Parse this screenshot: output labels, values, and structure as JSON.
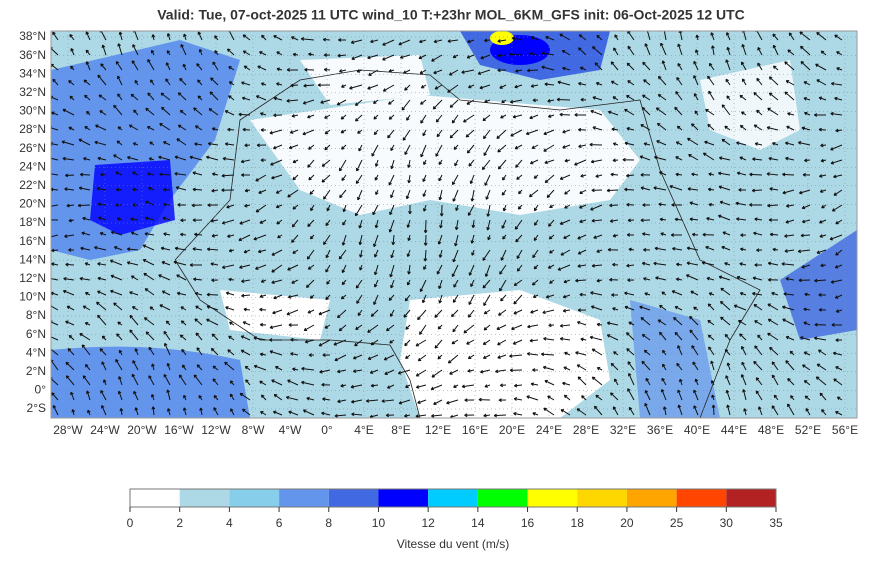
{
  "title": "Valid: Tue, 07-oct-2025   11 UTC   wind_10   T:+23hr   MOL_6KM_GFS   init: 06-Oct-2025    12 UTC",
  "lat_labels": [
    "38°N",
    "36°N",
    "34°N",
    "32°N",
    "30°N",
    "28°N",
    "26°N",
    "24°N",
    "22°N",
    "20°N",
    "18°N",
    "16°N",
    "14°N",
    "12°N",
    "10°N",
    "8°N",
    "6°N",
    "4°N",
    "2°N",
    "0°",
    "2°S"
  ],
  "lon_labels": [
    "28°W",
    "24°W",
    "20°W",
    "16°W",
    "12°W",
    "8°W",
    "4°W",
    "0°",
    "4°E",
    "8°E",
    "12°E",
    "16°E",
    "20°E",
    "24°E",
    "28°E",
    "32°E",
    "36°E",
    "40°E",
    "44°E",
    "48°E",
    "52°E",
    "56°E"
  ],
  "colorbar": {
    "label": "Vitesse du vent (m/s)",
    "ticks": [
      0,
      2,
      4,
      6,
      8,
      10,
      12,
      14,
      16,
      18,
      20,
      25,
      30,
      35
    ],
    "colors": [
      "#ffffff",
      "#add8e6",
      "#87ceeb",
      "#6495ed",
      "#4169e1",
      "#0000ff",
      "#00ccff",
      "#00ff00",
      "#ffff00",
      "#ffd700",
      "#ffa500",
      "#ff4500",
      "#b22222"
    ]
  }
}
